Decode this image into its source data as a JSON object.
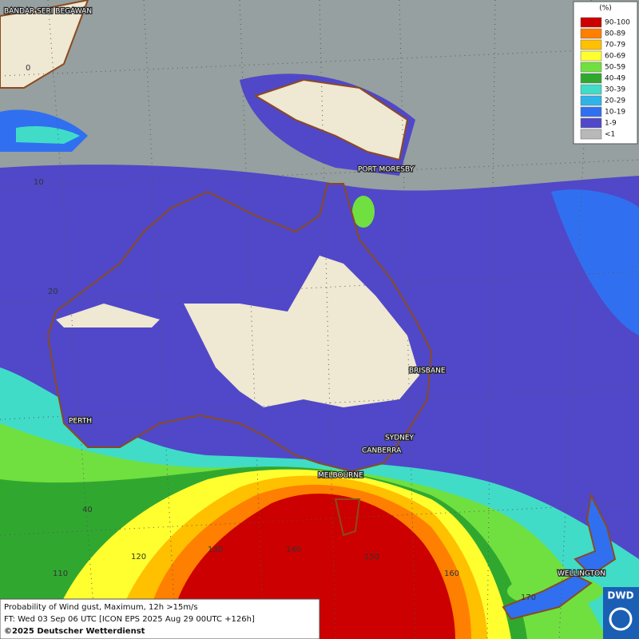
{
  "map": {
    "places": [
      "BANDAR SERI BEGAWAN",
      "PORT MORESBY",
      "BRISBANE",
      "PERTH",
      "SYDNEY",
      "CANBERRA",
      "MELBOURNE",
      "WELLINGTON"
    ],
    "lat_labels": [
      "0",
      "10",
      "20",
      "40"
    ],
    "lon_labels": [
      "110",
      "120",
      "130",
      "140",
      "150",
      "160",
      "170"
    ],
    "legend": {
      "title": "(%)",
      "items": [
        {
          "label": "90-100",
          "color": "#cc0000"
        },
        {
          "label": "80-89",
          "color": "#ff7f00"
        },
        {
          "label": "70-79",
          "color": "#ffc000"
        },
        {
          "label": "60-69",
          "color": "#ffff30"
        },
        {
          "label": "50-59",
          "color": "#70e040"
        },
        {
          "label": "40-49",
          "color": "#30a830"
        },
        {
          "label": "30-39",
          "color": "#40dcc8"
        },
        {
          "label": "20-29",
          "color": "#30b4e8"
        },
        {
          "label": "10-19",
          "color": "#3070f0"
        },
        {
          "label": "1-9",
          "color": "#5048c8"
        },
        {
          "label": "<1",
          "color": "#b8b8b8"
        }
      ]
    },
    "caption": [
      "Probability of Wind gust, Maximum, 12h >15m/s",
      "FT: Wed 03 Sep 06 UTC [ICON EPS 2025 Aug 29 00UTC +126h]",
      "©2025 Deutscher Wetterdienst"
    ],
    "logo": "DWD"
  }
}
